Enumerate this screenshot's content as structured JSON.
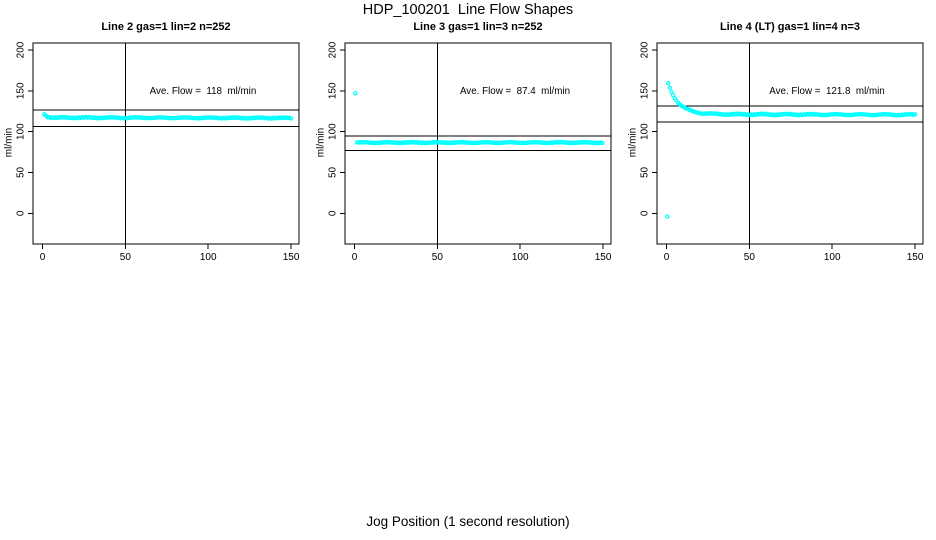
{
  "figure": {
    "main_title": "HDP_100201  Line Flow Shapes",
    "x_axis_label": "Jog Position (1 second resolution)",
    "background_color": "#FFFFFF",
    "axis_color": "#000000",
    "point_color": "#00FFFF"
  },
  "chart_data": [
    {
      "type": "scatter",
      "title": "Line 2 gas=1 lin=2 n=252",
      "line": "2",
      "gas": 1,
      "lin": 2,
      "n": 252,
      "annotation": "Ave. Flow =  118  ml/min",
      "ave_flow_ml_min": 118,
      "ylabel": "ml/min",
      "xticks": [
        0,
        50,
        100,
        150
      ],
      "yticks": [
        0,
        50,
        100,
        150,
        200
      ],
      "xlim": [
        -6,
        155
      ],
      "ylim": [
        -38,
        209
      ],
      "grid": false,
      "vline_x": 50,
      "hlines": [
        126.5,
        106.5
      ],
      "marker": "open-circle",
      "marker_color": "#00FFFF",
      "series": {
        "outliers": [],
        "band": {
          "x_from": 1,
          "x_to": 150,
          "x_step": 1,
          "y_base": 117.2,
          "start_amp": 4.5,
          "decay_tau": 1.6,
          "drift": -0.5,
          "jitter": 0.8,
          "seed": 1
        }
      }
    },
    {
      "type": "scatter",
      "title": "Line 3 gas=1 lin=3 n=252",
      "line": "3",
      "gas": 1,
      "lin": 3,
      "n": 252,
      "annotation": "Ave. Flow =  87.4  ml/min",
      "ave_flow_ml_min": 87.4,
      "ylabel": "ml/min",
      "xticks": [
        0,
        50,
        100,
        150
      ],
      "yticks": [
        0,
        50,
        100,
        150,
        200
      ],
      "xlim": [
        -6,
        155
      ],
      "ylim": [
        -38,
        209
      ],
      "grid": false,
      "vline_x": 50,
      "hlines": [
        94.5,
        77
      ],
      "marker": "open-circle",
      "marker_color": "#00FFFF",
      "series": {
        "outliers": [
          [
            0.5,
            147
          ]
        ],
        "band": {
          "x_from": 1.5,
          "x_to": 150,
          "x_step": 1,
          "y_base": 86.6,
          "start_amp": 0,
          "decay_tau": 1,
          "drift": 0,
          "jitter": 0.8,
          "seed": 2
        }
      }
    },
    {
      "type": "scatter",
      "title": "Line 4 (LT) gas=1 lin=4 n=3",
      "line": "4 (LT)",
      "gas": 1,
      "lin": 4,
      "n": 3,
      "annotation": "Ave. Flow =  121.8  ml/min",
      "ave_flow_ml_min": 121.8,
      "ylabel": "ml/min",
      "xticks": [
        0,
        50,
        100,
        150
      ],
      "yticks": [
        0,
        50,
        100,
        150,
        200
      ],
      "xlim": [
        -6,
        155
      ],
      "ylim": [
        -38,
        209
      ],
      "grid": false,
      "vline_x": 50,
      "hlines": [
        131.5,
        112
      ],
      "marker": "open-circle",
      "marker_color": "#00FFFF",
      "series": {
        "outliers": [
          [
            0.5,
            -4
          ]
        ],
        "band": {
          "x_from": 1,
          "x_to": 150,
          "x_step": 1,
          "y_base": 121.3,
          "start_amp": 38,
          "decay_tau": 6.3,
          "drift": -0.6,
          "jitter": 1.0,
          "seed": 3
        }
      }
    }
  ]
}
